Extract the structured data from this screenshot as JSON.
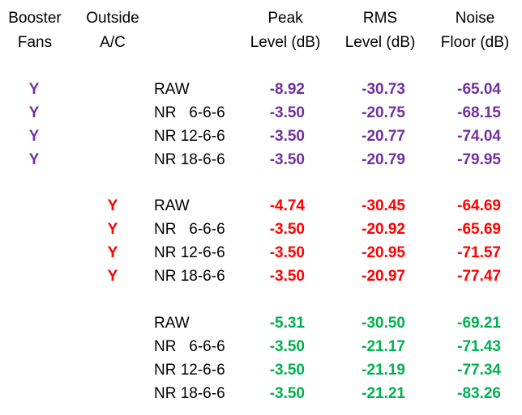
{
  "headers": {
    "booster_fans": [
      "Booster",
      "Fans"
    ],
    "outside_ac": [
      "Outside",
      "A/C"
    ],
    "peak_level": [
      "Peak",
      "Level (dB)"
    ],
    "rms_level": [
      "RMS",
      "Level (dB)"
    ],
    "noise_floor": [
      "Noise",
      "Floor (dB)"
    ]
  },
  "colors": {
    "group1": "#7030A0",
    "group2": "#FF0000",
    "group3": "#00B050"
  },
  "groups": [
    {
      "color_key": "group1",
      "rows": [
        {
          "fans": "Y",
          "ac": "",
          "label": "RAW",
          "peak": "-8.92",
          "rms": "-30.73",
          "noise": "-65.04"
        },
        {
          "fans": "Y",
          "ac": "",
          "label": "NR   6-6-6",
          "peak": "-3.50",
          "rms": "-20.75",
          "noise": "-68.15"
        },
        {
          "fans": "Y",
          "ac": "",
          "label": "NR 12-6-6",
          "peak": "-3.50",
          "rms": "-20.77",
          "noise": "-74.04"
        },
        {
          "fans": "Y",
          "ac": "",
          "label": "NR 18-6-6",
          "peak": "-3.50",
          "rms": "-20.79",
          "noise": "-79.95"
        }
      ]
    },
    {
      "color_key": "group2",
      "rows": [
        {
          "fans": "",
          "ac": "Y",
          "label": "RAW",
          "peak": "-4.74",
          "rms": "-30.45",
          "noise": "-64.69"
        },
        {
          "fans": "",
          "ac": "Y",
          "label": "NR   6-6-6",
          "peak": "-3.50",
          "rms": "-20.92",
          "noise": "-65.69"
        },
        {
          "fans": "",
          "ac": "Y",
          "label": "NR 12-6-6",
          "peak": "-3.50",
          "rms": "-20.95",
          "noise": "-71.57"
        },
        {
          "fans": "",
          "ac": "Y",
          "label": "NR 18-6-6",
          "peak": "-3.50",
          "rms": "-20.97",
          "noise": "-77.47"
        }
      ]
    },
    {
      "color_key": "group3",
      "rows": [
        {
          "fans": "",
          "ac": "",
          "label": "RAW",
          "peak": "-5.31",
          "rms": "-30.50",
          "noise": "-69.21"
        },
        {
          "fans": "",
          "ac": "",
          "label": "NR   6-6-6",
          "peak": "-3.50",
          "rms": "-21.17",
          "noise": "-71.43"
        },
        {
          "fans": "",
          "ac": "",
          "label": "NR 12-6-6",
          "peak": "-3.50",
          "rms": "-21.19",
          "noise": "-77.34"
        },
        {
          "fans": "",
          "ac": "",
          "label": "NR 18-6-6",
          "peak": "-3.50",
          "rms": "-21.21",
          "noise": "-83.26"
        }
      ]
    }
  ]
}
